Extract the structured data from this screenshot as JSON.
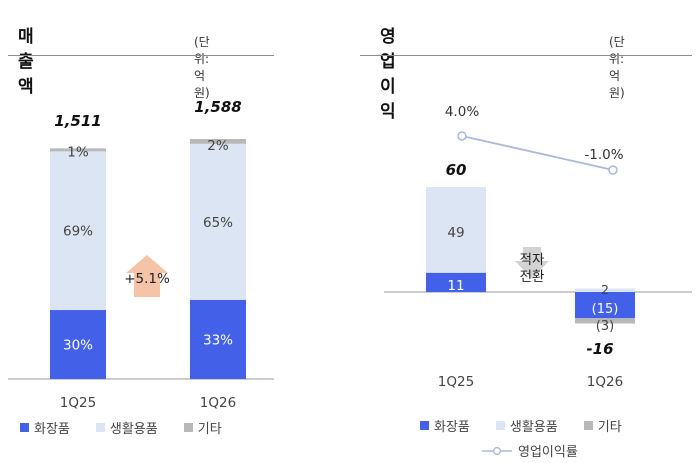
{
  "left_panel": {
    "title": "매출액",
    "unit": "(단위: 억 원)"
  },
  "right_panel": {
    "title": "영업이익",
    "unit": "(단위: 억 원)"
  },
  "colors": {
    "cosmetics": "#4361e8",
    "household": "#dce5f3",
    "other": "#b8b8b8",
    "arrow": "#f5c3a8",
    "line": "#a9b9de"
  },
  "chart_data": [
    {
      "type": "bar",
      "title": "매출액",
      "categories": [
        "1Q25",
        "1Q26"
      ],
      "totals": [
        "1,511",
        "1,588"
      ],
      "series": [
        {
          "name": "화장품",
          "values": [
            30,
            33
          ],
          "labels": [
            "30%",
            "33%"
          ]
        },
        {
          "name": "생활용품",
          "values": [
            69,
            65
          ],
          "labels": [
            "69%",
            "65%"
          ]
        },
        {
          "name": "기타",
          "values": [
            1,
            2
          ],
          "labels": [
            "1%",
            "2%"
          ]
        }
      ],
      "growth_label": "+5.1%",
      "legend": [
        "화장품",
        "생활용품",
        "기타"
      ]
    },
    {
      "type": "bar",
      "title": "영업이익",
      "categories": [
        "1Q25",
        "1Q26"
      ],
      "totals": [
        "60",
        "-16"
      ],
      "series": [
        {
          "name": "화장품",
          "values": [
            11,
            -15
          ],
          "labels": [
            "11",
            "(15)"
          ]
        },
        {
          "name": "생활용품",
          "values": [
            49,
            2
          ],
          "labels": [
            "49",
            "2"
          ]
        },
        {
          "name": "기타",
          "values": [
            0,
            -3
          ],
          "labels": [
            "",
            "(3)"
          ]
        }
      ],
      "line_series": {
        "name": "영업이익률",
        "values": [
          4.0,
          -1.0
        ],
        "labels": [
          "4.0%",
          "-1.0%"
        ]
      },
      "change_label": [
        "적자",
        "전환"
      ],
      "legend": [
        "화장품",
        "생활용품",
        "기타",
        "영업이익률"
      ]
    }
  ]
}
